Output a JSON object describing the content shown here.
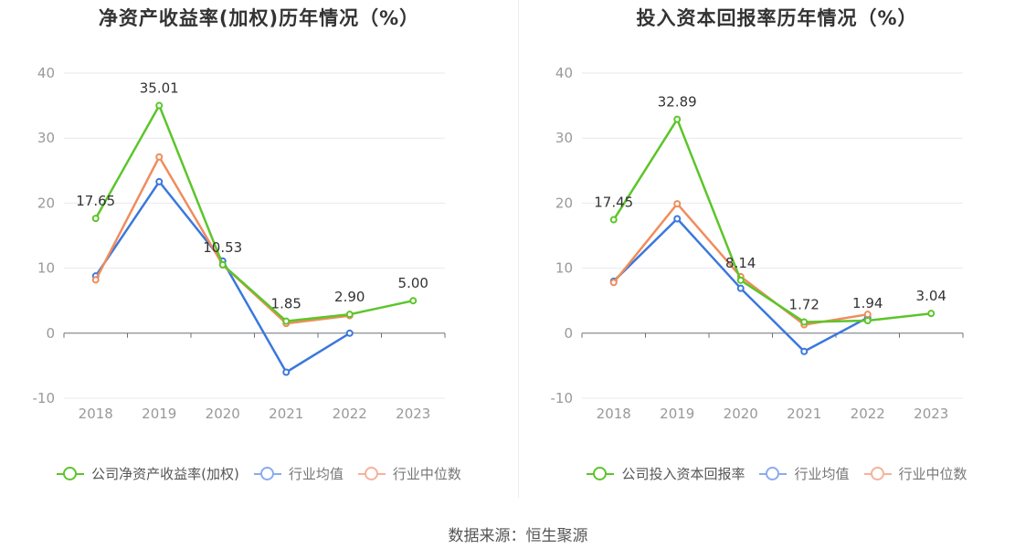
{
  "source": "数据来源：恒生聚源",
  "colors": {
    "company": "#5cc52a",
    "avg": "#3a78dd",
    "median": "#f08c5c",
    "avg_legend": "#8aabf0",
    "median_legend": "#f5b29a"
  },
  "chart_data": [
    {
      "type": "line",
      "title": "净资产收益率(加权)历年情况（%）",
      "categories": [
        "2018",
        "2019",
        "2020",
        "2021",
        "2022",
        "2023"
      ],
      "ylim": [
        -10,
        40
      ],
      "yticks": [
        -10,
        0,
        10,
        20,
        30,
        40
      ],
      "grid": true,
      "legend_position": "bottom",
      "series": [
        {
          "name": "公司净资产收益率(加权)",
          "key": "company",
          "values": [
            17.65,
            35.01,
            10.53,
            1.85,
            2.9,
            5.0
          ],
          "labels": [
            "17.65",
            "35.01",
            "10.53",
            "1.85",
            "2.90",
            "5.00"
          ]
        },
        {
          "name": "行业均值",
          "key": "avg",
          "values": [
            8.8,
            23.3,
            11.1,
            -6.0,
            0.0,
            null
          ]
        },
        {
          "name": "行业中位数",
          "key": "median",
          "values": [
            8.2,
            27.1,
            10.5,
            1.5,
            2.7,
            null
          ]
        }
      ]
    },
    {
      "type": "line",
      "title": "投入资本回报率历年情况（%）",
      "categories": [
        "2018",
        "2019",
        "2020",
        "2021",
        "2022",
        "2023"
      ],
      "ylim": [
        -10,
        40
      ],
      "yticks": [
        -10,
        0,
        10,
        20,
        30,
        40
      ],
      "grid": true,
      "legend_position": "bottom",
      "series": [
        {
          "name": "公司投入资本回报率",
          "key": "company",
          "values": [
            17.45,
            32.89,
            8.14,
            1.72,
            1.94,
            3.04
          ],
          "labels": [
            "17.45",
            "32.89",
            "8.14",
            "1.72",
            "1.94",
            "3.04"
          ]
        },
        {
          "name": "行业均值",
          "key": "avg",
          "values": [
            8.0,
            17.6,
            6.9,
            -2.8,
            2.4,
            null
          ]
        },
        {
          "name": "行业中位数",
          "key": "median",
          "values": [
            7.8,
            19.9,
            8.7,
            1.3,
            2.9,
            null
          ]
        }
      ]
    }
  ]
}
